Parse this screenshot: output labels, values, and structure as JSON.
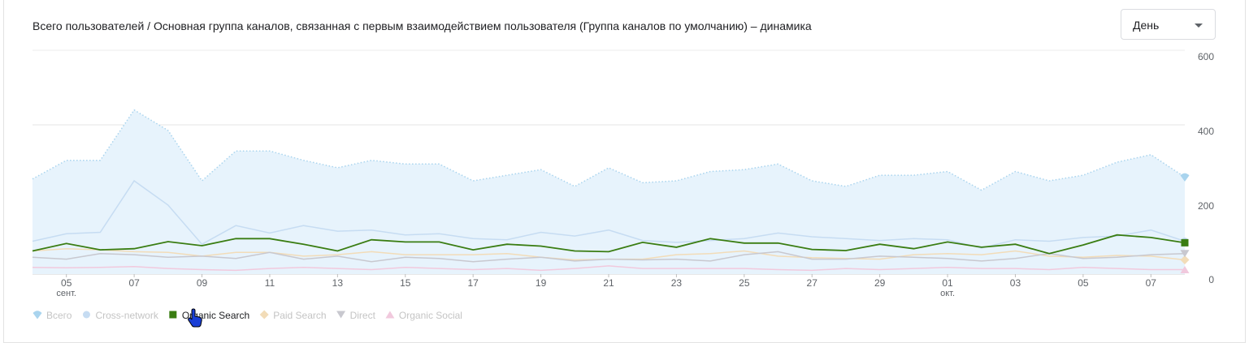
{
  "header": {
    "title": "Всего пользователей / Основная группа каналов, связанная с первым взаимодействием пользователя (Группа каналов по умолчанию) – динамика",
    "granularity_selected": "День"
  },
  "chart_data": {
    "type": "line",
    "title": "Всего пользователей / Основная группа каналов, связанная с первым взаимодействием пользователя (Группа каналов по умолчанию) – динамика",
    "ylim": [
      0,
      600
    ],
    "yticks": [
      0,
      200,
      400,
      600
    ],
    "y_axis_side": "right",
    "grid": true,
    "legend_position": "bottom-left",
    "x_tick_labels": [
      {
        "label": "05",
        "sub": "сент.",
        "day_index": 1
      },
      {
        "label": "07",
        "day_index": 3
      },
      {
        "label": "09",
        "day_index": 5
      },
      {
        "label": "11",
        "day_index": 7
      },
      {
        "label": "13",
        "day_index": 9
      },
      {
        "label": "15",
        "day_index": 11
      },
      {
        "label": "17",
        "day_index": 13
      },
      {
        "label": "19",
        "day_index": 15
      },
      {
        "label": "21",
        "day_index": 17
      },
      {
        "label": "23",
        "day_index": 19
      },
      {
        "label": "25",
        "day_index": 21
      },
      {
        "label": "27",
        "day_index": 23
      },
      {
        "label": "29",
        "day_index": 25
      },
      {
        "label": "01",
        "sub": "окт.",
        "day_index": 27
      },
      {
        "label": "03",
        "day_index": 29
      },
      {
        "label": "05",
        "day_index": 31
      },
      {
        "label": "07",
        "day_index": 33
      }
    ],
    "x_dates": [
      "09-04",
      "09-05",
      "09-06",
      "09-07",
      "09-08",
      "09-09",
      "09-10",
      "09-11",
      "09-12",
      "09-13",
      "09-14",
      "09-15",
      "09-16",
      "09-17",
      "09-18",
      "09-19",
      "09-20",
      "09-21",
      "09-22",
      "09-23",
      "09-24",
      "09-25",
      "09-26",
      "09-27",
      "09-28",
      "09-29",
      "09-30",
      "10-01",
      "10-02",
      "10-03",
      "10-04",
      "10-05",
      "10-06",
      "10-07",
      "10-08"
    ],
    "series": [
      {
        "name": "Всего",
        "color": "#a9d4ee",
        "fill": "#e7f3fc",
        "style": "area-dotted",
        "marker": "drop",
        "active": false,
        "values": [
          255,
          305,
          305,
          440,
          385,
          250,
          330,
          330,
          305,
          285,
          305,
          295,
          295,
          250,
          265,
          280,
          235,
          285,
          245,
          250,
          275,
          280,
          295,
          250,
          235,
          265,
          265,
          275,
          225,
          275,
          250,
          265,
          300,
          320,
          260
        ]
      },
      {
        "name": "Cross-network",
        "color": "#c6dcf2",
        "style": "line",
        "marker": "circle",
        "active": false,
        "values": [
          88,
          108,
          112,
          250,
          185,
          80,
          130,
          110,
          130,
          115,
          118,
          105,
          108,
          95,
          92,
          112,
          102,
          118,
          90,
          85,
          90,
          95,
          110,
          100,
          95,
          90,
          95,
          92,
          70,
          92,
          88,
          98,
          102,
          118,
          88
        ]
      },
      {
        "name": "Organic Search",
        "color": "#3a7d12",
        "style": "line",
        "marker": "square",
        "active": true,
        "values": [
          62,
          82,
          65,
          68,
          87,
          76,
          95,
          95,
          80,
          62,
          92,
          86,
          86,
          65,
          80,
          75,
          62,
          60,
          85,
          72,
          95,
          83,
          83,
          66,
          63,
          80,
          68,
          86,
          72,
          80,
          55,
          78,
          105,
          98,
          84
        ]
      },
      {
        "name": "Paid Search",
        "color": "#f2dcb8",
        "style": "line",
        "marker": "diamond",
        "active": false,
        "values": [
          62,
          68,
          65,
          60,
          58,
          48,
          58,
          58,
          48,
          52,
          60,
          52,
          52,
          52,
          55,
          45,
          38,
          40,
          40,
          52,
          55,
          62,
          48,
          44,
          42,
          40,
          52,
          55,
          52,
          62,
          48,
          45,
          50,
          48,
          38
        ]
      },
      {
        "name": "Direct",
        "color": "#c8c8cf",
        "style": "line",
        "marker": "triangle-down",
        "active": false,
        "values": [
          45,
          40,
          55,
          52,
          45,
          48,
          42,
          58,
          40,
          48,
          33,
          45,
          42,
          33,
          40,
          45,
          35,
          40,
          38,
          40,
          35,
          52,
          60,
          40,
          40,
          48,
          45,
          42,
          35,
          42,
          55,
          42,
          45,
          52,
          55
        ]
      },
      {
        "name": "Organic Social",
        "color": "#f1c9dd",
        "style": "line",
        "marker": "triangle-up",
        "active": false,
        "values": [
          18,
          17,
          18,
          20,
          15,
          12,
          10,
          15,
          18,
          15,
          12,
          18,
          15,
          12,
          15,
          10,
          15,
          22,
          15,
          15,
          15,
          15,
          12,
          10,
          15,
          12,
          15,
          18,
          15,
          15,
          12,
          18,
          15,
          12,
          12
        ]
      }
    ]
  }
}
